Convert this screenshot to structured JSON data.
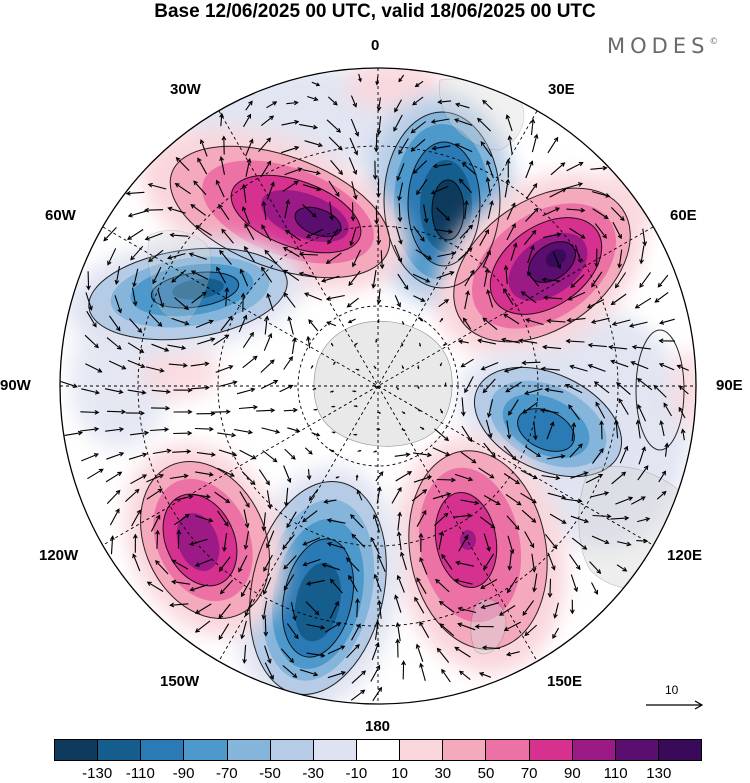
{
  "title": "Base 12/06/2025 00 UTC, valid 18/06/2025 00 UTC",
  "brand": "MODES",
  "brand_mark": "©",
  "longitude_labels": {
    "lon_0": "0",
    "lon_30e": "30E",
    "lon_60e": "60E",
    "lon_90e": "90E",
    "lon_120e": "120E",
    "lon_150e": "150E",
    "lon_180": "180",
    "lon_150w": "150W",
    "lon_120w": "120W",
    "lon_90w": "90W",
    "lon_60w": "60W",
    "lon_30w": "30W"
  },
  "reference_vector_label": "10",
  "colorbar": {
    "labels": [
      "-130",
      "-110",
      "-90",
      "-70",
      "-50",
      "-30",
      "-10",
      "10",
      "30",
      "50",
      "70",
      "90",
      "110",
      "130"
    ],
    "colors": [
      "#0e3a5e",
      "#155d8c",
      "#2a7ab5",
      "#4d99cb",
      "#86b5dc",
      "#b6cce6",
      "#dfe3f1",
      "#ffffff",
      "#f9d6db",
      "#f4a9bd",
      "#ec72a5",
      "#d6318f",
      "#9c1a85",
      "#5a0f70",
      "#3a0a5a"
    ]
  },
  "anomaly_centers": [
    {
      "id": "neg-north",
      "lon": 8,
      "value": -130
    },
    {
      "id": "pos-30w",
      "lon": -35,
      "value": 110
    },
    {
      "id": "neg-60w",
      "lon": -70,
      "value": -110
    },
    {
      "id": "pos-45e",
      "lon": 48,
      "value": 130
    },
    {
      "id": "neg-100e",
      "lon": 102,
      "value": -90
    },
    {
      "id": "pos-150e",
      "lon": 150,
      "value": 90
    },
    {
      "id": "neg-165w",
      "lon": -168,
      "value": -110
    },
    {
      "id": "pos-130w",
      "lon": -128,
      "value": 110
    }
  ]
}
